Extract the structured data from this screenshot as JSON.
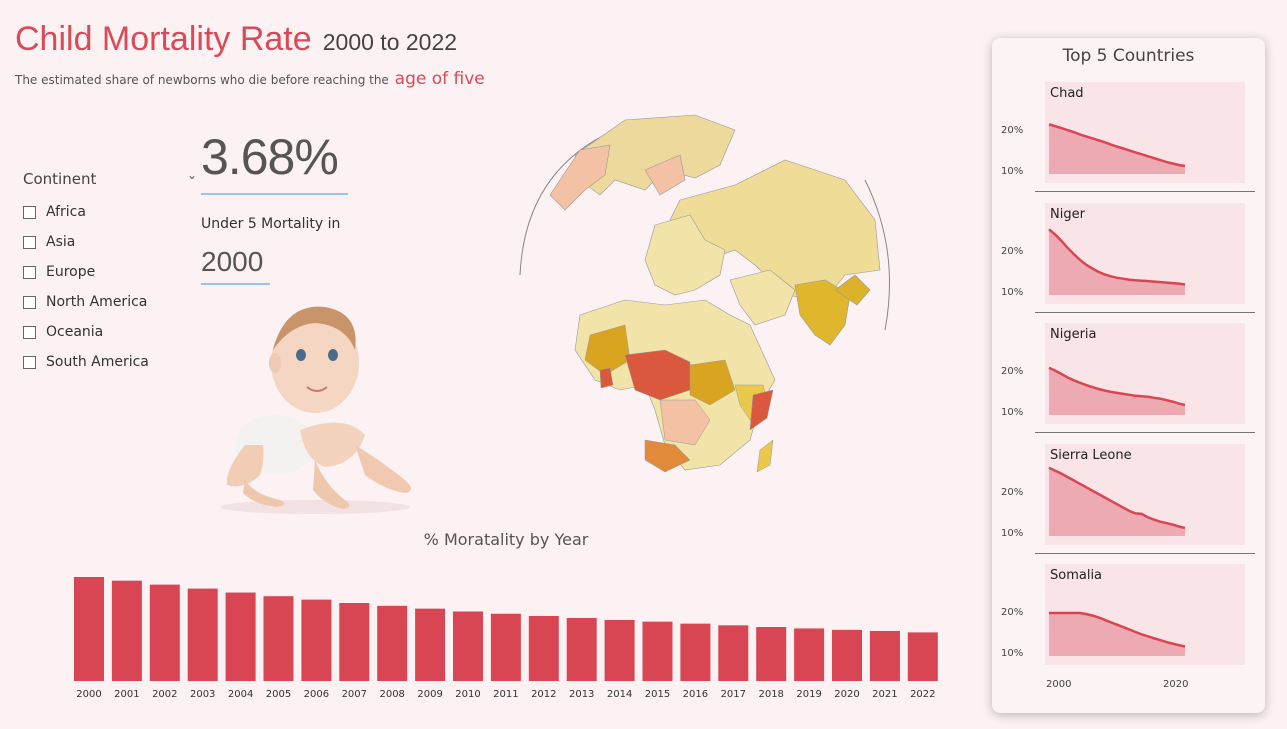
{
  "header": {
    "title": "Child Mortality Rate",
    "range": "2000 to 2022",
    "subtitle": "The estimated share of newborns who die before reaching the",
    "subtitle_highlight": "age of five"
  },
  "slicer": {
    "header": "Continent",
    "options": [
      "Africa",
      "Asia",
      "Europe",
      "North America",
      "Oceania",
      "South America"
    ]
  },
  "kpi": {
    "value": "3.68%",
    "label": "Under 5 Mortality in",
    "year": "2000"
  },
  "colors": {
    "accent": "#d94a57",
    "bar": "#d94653",
    "area_fill": "#eeaab2",
    "kpi_underline": "#9cc3ec"
  },
  "chart_data": [
    {
      "type": "bar",
      "title": "% Moratality by Year",
      "categories": [
        "2000",
        "2001",
        "2002",
        "2003",
        "2004",
        "2005",
        "2006",
        "2007",
        "2008",
        "2009",
        "2010",
        "2011",
        "2012",
        "2013",
        "2014",
        "2015",
        "2016",
        "2017",
        "2018",
        "2019",
        "2020",
        "2021",
        "2022"
      ],
      "values": [
        3.68,
        3.55,
        3.41,
        3.27,
        3.13,
        3.0,
        2.88,
        2.76,
        2.66,
        2.56,
        2.46,
        2.38,
        2.3,
        2.23,
        2.16,
        2.1,
        2.03,
        1.97,
        1.91,
        1.86,
        1.81,
        1.77,
        1.72
      ],
      "ylim": [
        0,
        3.68
      ],
      "xlabel": "",
      "ylabel": "",
      "grid": false
    },
    {
      "type": "area",
      "title": "Top 5 Countries",
      "x_ticks": [
        "2000",
        "2020"
      ],
      "y_ticks": [
        "20%",
        "10%"
      ],
      "ylim": [
        7,
        27
      ],
      "xlim": [
        2000,
        2022
      ],
      "x": [
        2000,
        2001,
        2002,
        2003,
        2004,
        2005,
        2006,
        2007,
        2008,
        2009,
        2010,
        2011,
        2012,
        2013,
        2014,
        2015,
        2016,
        2017,
        2018,
        2019,
        2020,
        2021,
        2022
      ],
      "series": [
        {
          "name": "Chad",
          "values": [
            18.7,
            18.3,
            17.9,
            17.5,
            17.1,
            16.6,
            16.2,
            15.8,
            15.4,
            15.0,
            14.5,
            14.1,
            13.7,
            13.3,
            12.9,
            12.5,
            12.1,
            11.7,
            11.3,
            10.9,
            10.6,
            10.3,
            10.1
          ]
        },
        {
          "name": "Niger",
          "values": [
            22.0,
            20.9,
            19.6,
            18.2,
            16.9,
            15.7,
            14.7,
            13.9,
            13.2,
            12.7,
            12.3,
            12.0,
            11.8,
            11.6,
            11.5,
            11.4,
            11.3,
            11.2,
            11.1,
            11.0,
            10.9,
            10.8,
            10.6
          ]
        },
        {
          "name": "Nigeria",
          "values": [
            18.2,
            17.6,
            16.9,
            16.2,
            15.6,
            15.1,
            14.6,
            14.2,
            13.8,
            13.5,
            13.2,
            13.0,
            12.8,
            12.6,
            12.4,
            12.3,
            12.2,
            12.0,
            11.8,
            11.5,
            11.2,
            10.8,
            10.5
          ]
        },
        {
          "name": "Sierra Leone",
          "values": [
            22.5,
            21.9,
            21.3,
            20.6,
            19.9,
            19.2,
            18.5,
            17.8,
            17.1,
            16.4,
            15.7,
            15.0,
            14.3,
            13.6,
            13.1,
            13.0,
            12.3,
            11.8,
            11.4,
            11.1,
            10.8,
            10.4,
            10.1
          ]
        },
        {
          "name": "Somalia",
          "values": [
            17.3,
            17.3,
            17.3,
            17.3,
            17.3,
            17.3,
            17.1,
            16.8,
            16.4,
            15.9,
            15.4,
            14.9,
            14.4,
            13.9,
            13.4,
            12.9,
            12.5,
            12.1,
            11.7,
            11.3,
            11.0,
            10.7,
            10.4
          ]
        }
      ]
    }
  ],
  "icons": {
    "dropdown": "chevron-down-icon",
    "checkbox": "checkbox-icon"
  }
}
